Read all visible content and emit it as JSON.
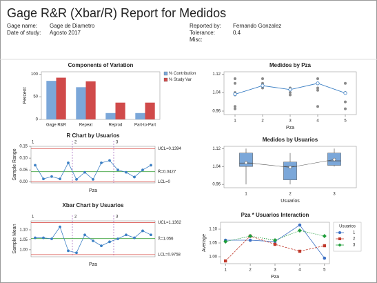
{
  "header": {
    "title": "Gage R&R (Xbar/R) Report for Medidos",
    "left": [
      [
        "Gage name:",
        "Gage de Diametro"
      ],
      [
        "Date of study:",
        "Agosto 2017"
      ]
    ],
    "right": [
      [
        "Reported by:",
        "Fernando Gonzalez"
      ],
      [
        "Tolerance:",
        "0.4"
      ],
      [
        "Misc:"
      ]
    ]
  },
  "chart_data": [
    {
      "type": "bar",
      "title": "Components of Variation",
      "ylabel": "Percent",
      "categories": [
        "Gage R&R",
        "Repeat",
        "Reprod",
        "Part-to-Part"
      ],
      "series": [
        {
          "name": "% Contribution",
          "color": "#7ba7d9",
          "values": [
            85,
            71,
            14,
            14
          ]
        },
        {
          "name": "% Study Var",
          "color": "#d04a4a",
          "values": [
            92,
            84,
            37,
            37
          ]
        }
      ],
      "ylim": [
        0,
        105
      ],
      "yticks": [
        0,
        50,
        100
      ]
    },
    {
      "type": "line",
      "title": "Medidos by Pza",
      "xlabel": "Pza",
      "color": "#3b7fc4",
      "point_color": "#8a8a8a",
      "x": [
        1,
        2,
        3,
        4,
        5
      ],
      "values": [
        1.033,
        1.07,
        1.053,
        1.08,
        1.038
      ],
      "points_x": [
        1,
        1,
        1,
        1,
        1,
        1,
        2,
        2,
        2,
        3,
        3,
        3,
        4,
        4,
        4,
        4,
        4,
        5,
        5,
        5,
        5
      ],
      "points_y": [
        1.1,
        1.08,
        1.04,
        1.03,
        0.98,
        0.97,
        1.1,
        1.08,
        1.06,
        1.06,
        1.04,
        1.03,
        1.1,
        1.08,
        1.06,
        1.05,
        0.98,
        1.08,
        1.04,
        1.0,
        0.97
      ],
      "xlim": [
        0.6,
        5.4
      ],
      "xticks": [
        1,
        2,
        3,
        4,
        5
      ],
      "ylim": [
        0.945,
        1.13
      ],
      "yticks": [
        0.96,
        1.04,
        1.12
      ]
    },
    {
      "type": "control",
      "title": "R Chart by Usuarios",
      "xlabel": "Pza",
      "ylabel": "Sample Range",
      "color": "#3b7fc4",
      "groups": [
        "1",
        "2",
        "3"
      ],
      "values": [
        0.07,
        0.012,
        0.022,
        0.012,
        0.08,
        0.01,
        0.04,
        0.01,
        0.08,
        0.09,
        0.05,
        0.04,
        0.02,
        0.05,
        0.07
      ],
      "limits": [
        {
          "value": 0.1394,
          "label": "UCL=0.1394"
        },
        {
          "value": 0.0427,
          "label": "R̄=0.0427"
        },
        {
          "value": 0,
          "label": "LCL=0"
        }
      ],
      "limit_colors": [
        "#d9534f",
        "#3fa33f",
        "#d9534f"
      ],
      "ylim": [
        -0.005,
        0.15
      ],
      "yticks": [
        {
          "value": 0,
          "label": "0.00"
        },
        {
          "value": 0.05,
          "label": "0.05"
        },
        {
          "value": 0.1,
          "label": "0.10"
        },
        {
          "value": 0.15,
          "label": "0.15"
        }
      ]
    },
    {
      "type": "box",
      "title": "Medidos by Usuarios",
      "xlabel": "Usuarios",
      "color": "#7ba7d9",
      "line_color": "#555555",
      "categories": [
        "1",
        "2",
        "3"
      ],
      "boxes": [
        {
          "min": 0.96,
          "q1": 1.04,
          "median": 1.055,
          "q3": 1.1,
          "max": 1.12,
          "mean": 1.057
        },
        {
          "min": 0.96,
          "q1": 0.98,
          "median": 1.04,
          "q3": 1.06,
          "max": 1.1,
          "mean": 1.036
        },
        {
          "min": 1.04,
          "q1": 1.045,
          "median": 1.065,
          "q3": 1.1,
          "max": 1.12,
          "mean": 1.071
        }
      ],
      "ylim": [
        0.945,
        1.13
      ],
      "yticks": [
        0.96,
        1.04,
        1.12
      ]
    },
    {
      "type": "control",
      "title": "Xbar Chart by Usuarios",
      "xlabel": "Pza",
      "ylabel": "Sample Mean",
      "color": "#3b7fc4",
      "groups": [
        "1",
        "2",
        "3"
      ],
      "values": [
        1.06,
        1.06,
        1.055,
        1.115,
        0.995,
        0.985,
        1.075,
        1.045,
        1.02,
        1.04,
        1.055,
        1.075,
        1.06,
        1.095,
        1.075
      ],
      "limits": [
        {
          "value": 1.1362,
          "label": "UCL=1.1362"
        },
        {
          "value": 1.056,
          "label": "X̄=1.056"
        },
        {
          "value": 0.9758,
          "label": "LCL=0.9758"
        }
      ],
      "limit_colors": [
        "#d9534f",
        "#3fa33f",
        "#d9534f"
      ],
      "ylim": [
        0.965,
        1.145
      ],
      "yticks": [
        {
          "value": 1,
          "label": "1.00"
        },
        {
          "value": 1.05,
          "label": "1.05"
        },
        {
          "value": 1.1,
          "label": "1.10"
        }
      ]
    },
    {
      "type": "interaction",
      "title": "Pza * Usuarios Interaction",
      "xlabel": "Pza",
      "ylabel": "Average",
      "legend_title": "Usuarios",
      "x": [
        1,
        2,
        3,
        4,
        5
      ],
      "series": [
        {
          "name": "1",
          "color": "#3b6fc4",
          "marker": "circle",
          "values": [
            1.06,
            1.06,
            1.055,
            1.115,
            0.995
          ]
        },
        {
          "name": "2",
          "color": "#c0392b",
          "marker": "square",
          "values": [
            0.985,
            1.075,
            1.045,
            1.02,
            1.04
          ]
        },
        {
          "name": "3",
          "color": "#1f9d3a",
          "marker": "diamond",
          "values": [
            1.055,
            1.075,
            1.06,
            1.095,
            1.075
          ]
        }
      ],
      "xlim": [
        0.8,
        5.2
      ],
      "xticks": [
        1,
        2,
        3,
        4,
        5
      ],
      "ylim": [
        0.975,
        1.125
      ],
      "yticks": [
        {
          "value": 1,
          "label": "1.00"
        },
        {
          "value": 1.05,
          "label": "1.05"
        },
        {
          "value": 1.1,
          "label": "1.10"
        }
      ]
    }
  ]
}
